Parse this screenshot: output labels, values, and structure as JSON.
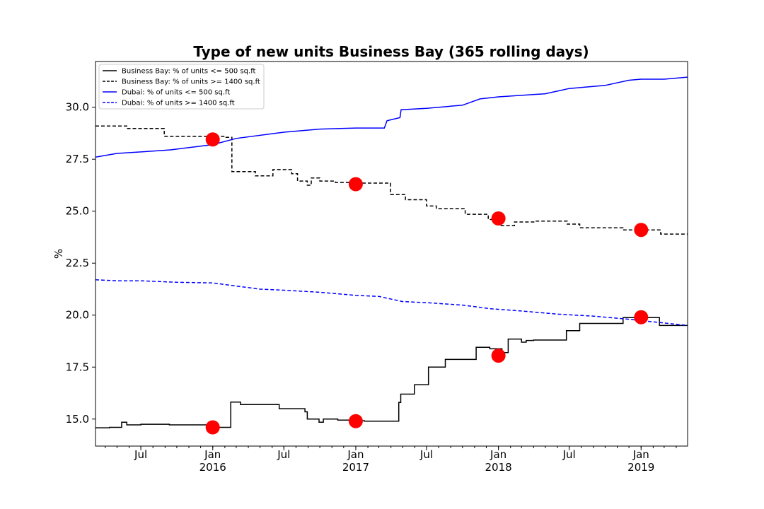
{
  "chart_data": {
    "type": "line",
    "title": "Type of new units Business Bay (365 rolling days)",
    "xlabel": "",
    "ylabel": "%",
    "xlim": [
      "2015-03-07",
      "2019-04-30"
    ],
    "ylim": [
      13.7,
      32.2
    ],
    "grid": false,
    "legend_position": "top-left",
    "y_ticks": [
      "15.0",
      "17.5",
      "20.0",
      "22.5",
      "25.0",
      "27.5",
      "30.0"
    ],
    "x_ticks": [
      {
        "date": "2015-07-01",
        "label": "Jul",
        "year": ""
      },
      {
        "date": "2016-01-01",
        "label": "Jan",
        "year": "2016"
      },
      {
        "date": "2016-07-01",
        "label": "Jul",
        "year": ""
      },
      {
        "date": "2017-01-01",
        "label": "Jan",
        "year": "2017"
      },
      {
        "date": "2017-07-01",
        "label": "Jul",
        "year": ""
      },
      {
        "date": "2018-01-01",
        "label": "Jan",
        "year": "2018"
      },
      {
        "date": "2018-07-01",
        "label": "Jul",
        "year": ""
      },
      {
        "date": "2019-01-01",
        "label": "Jan",
        "year": "2019"
      }
    ],
    "series": [
      {
        "name": "Business Bay: % of units <= 500 sq.ft",
        "color": "#000000",
        "dash": false,
        "step": true,
        "points": [
          [
            "2015-03-07",
            14.58
          ],
          [
            "2015-04-12",
            14.6
          ],
          [
            "2015-05-13",
            14.85
          ],
          [
            "2015-05-26",
            14.72
          ],
          [
            "2015-07-01",
            14.75
          ],
          [
            "2015-09-12",
            14.72
          ],
          [
            "2016-01-06",
            14.6
          ],
          [
            "2016-02-16",
            15.82
          ],
          [
            "2016-03-12",
            15.7
          ],
          [
            "2016-06-19",
            15.5
          ],
          [
            "2016-08-24",
            15.35
          ],
          [
            "2016-08-30",
            15.0
          ],
          [
            "2016-09-29",
            14.85
          ],
          [
            "2016-10-10",
            15.0
          ],
          [
            "2016-11-16",
            14.95
          ],
          [
            "2016-12-19",
            14.92
          ],
          [
            "2017-01-23",
            14.9
          ],
          [
            "2017-04-21",
            15.8
          ],
          [
            "2017-04-26",
            16.2
          ],
          [
            "2017-05-31",
            16.65
          ],
          [
            "2017-06-30",
            16.65
          ],
          [
            "2017-07-06",
            17.5
          ],
          [
            "2017-08-18",
            17.87
          ],
          [
            "2017-11-05",
            18.45
          ],
          [
            "2017-12-10",
            18.38
          ],
          [
            "2018-01-10",
            18.2
          ],
          [
            "2018-01-26",
            18.85
          ],
          [
            "2018-03-01",
            18.7
          ],
          [
            "2018-03-13",
            18.78
          ],
          [
            "2018-04-01",
            18.8
          ],
          [
            "2018-06-24",
            19.25
          ],
          [
            "2018-07-28",
            19.6
          ],
          [
            "2018-11-16",
            19.88
          ],
          [
            "2019-01-13",
            19.88
          ],
          [
            "2019-02-17",
            19.5
          ],
          [
            "2019-04-30",
            19.5
          ]
        ]
      },
      {
        "name": "Business Bay: % of units >= 1400 sq.ft",
        "color": "#000000",
        "dash": true,
        "step": true,
        "points": [
          [
            "2015-03-07",
            29.1
          ],
          [
            "2015-05-26",
            28.98
          ],
          [
            "2015-08-30",
            28.6
          ],
          [
            "2016-02-04",
            28.55
          ],
          [
            "2016-02-19",
            26.9
          ],
          [
            "2016-04-19",
            26.7
          ],
          [
            "2016-06-03",
            27.0
          ],
          [
            "2016-07-21",
            26.8
          ],
          [
            "2016-08-05",
            26.45
          ],
          [
            "2016-08-30",
            26.25
          ],
          [
            "2016-09-09",
            26.6
          ],
          [
            "2016-10-01",
            26.45
          ],
          [
            "2016-11-10",
            26.38
          ],
          [
            "2017-01-10",
            26.35
          ],
          [
            "2017-03-31",
            25.8
          ],
          [
            "2017-05-08",
            25.55
          ],
          [
            "2017-07-01",
            25.25
          ],
          [
            "2017-07-26",
            25.12
          ],
          [
            "2017-10-08",
            24.85
          ],
          [
            "2017-12-06",
            24.6
          ],
          [
            "2018-01-03",
            24.3
          ],
          [
            "2018-02-11",
            24.48
          ],
          [
            "2018-04-06",
            24.52
          ],
          [
            "2018-06-26",
            24.38
          ],
          [
            "2018-07-28",
            24.2
          ],
          [
            "2018-11-16",
            24.1
          ],
          [
            "2019-02-20",
            23.9
          ],
          [
            "2019-04-30",
            23.9
          ]
        ]
      },
      {
        "name": "Dubai: % of units <= 500 sq.ft",
        "color": "#0000ff",
        "dash": false,
        "step": false,
        "points": [
          [
            "2015-03-07",
            27.6
          ],
          [
            "2015-05-01",
            27.78
          ],
          [
            "2015-07-01",
            27.85
          ],
          [
            "2015-09-15",
            27.95
          ],
          [
            "2016-01-01",
            28.2
          ],
          [
            "2016-03-01",
            28.5
          ],
          [
            "2016-07-01",
            28.8
          ],
          [
            "2016-10-01",
            28.95
          ],
          [
            "2017-01-01",
            29.0
          ],
          [
            "2017-03-15",
            29.0
          ],
          [
            "2017-03-22",
            29.35
          ],
          [
            "2017-04-24",
            29.5
          ],
          [
            "2017-04-27",
            29.88
          ],
          [
            "2017-07-01",
            29.95
          ],
          [
            "2017-10-01",
            30.1
          ],
          [
            "2017-11-15",
            30.4
          ],
          [
            "2018-01-01",
            30.5
          ],
          [
            "2018-05-01",
            30.65
          ],
          [
            "2018-07-01",
            30.9
          ],
          [
            "2018-10-01",
            31.05
          ],
          [
            "2018-12-01",
            31.3
          ],
          [
            "2019-01-01",
            31.35
          ],
          [
            "2019-03-01",
            31.35
          ],
          [
            "2019-04-30",
            31.45
          ]
        ]
      },
      {
        "name": "Dubai: % of units >= 1400 sq.ft",
        "color": "#0000ff",
        "dash": true,
        "step": false,
        "points": [
          [
            "2015-03-07",
            21.7
          ],
          [
            "2015-05-01",
            21.65
          ],
          [
            "2015-07-01",
            21.65
          ],
          [
            "2015-10-01",
            21.58
          ],
          [
            "2016-01-01",
            21.55
          ],
          [
            "2016-03-01",
            21.4
          ],
          [
            "2016-05-01",
            21.25
          ],
          [
            "2016-07-01",
            21.2
          ],
          [
            "2016-10-01",
            21.1
          ],
          [
            "2017-01-01",
            20.95
          ],
          [
            "2017-03-01",
            20.9
          ],
          [
            "2017-05-01",
            20.65
          ],
          [
            "2017-07-01",
            20.6
          ],
          [
            "2017-10-01",
            20.48
          ],
          [
            "2017-12-15",
            20.3
          ],
          [
            "2018-03-01",
            20.2
          ],
          [
            "2018-06-01",
            20.05
          ],
          [
            "2018-09-01",
            19.95
          ],
          [
            "2018-12-01",
            19.8
          ],
          [
            "2019-04-30",
            19.5
          ]
        ]
      }
    ],
    "markers": {
      "color": "#ff0000",
      "points": [
        [
          "2016-01-01",
          28.45
        ],
        [
          "2017-01-01",
          26.3
        ],
        [
          "2018-01-01",
          24.65
        ],
        [
          "2019-01-01",
          24.1
        ],
        [
          "2016-01-01",
          14.6
        ],
        [
          "2017-01-01",
          14.9
        ],
        [
          "2018-01-01",
          18.05
        ],
        [
          "2019-01-01",
          19.9
        ]
      ]
    }
  }
}
